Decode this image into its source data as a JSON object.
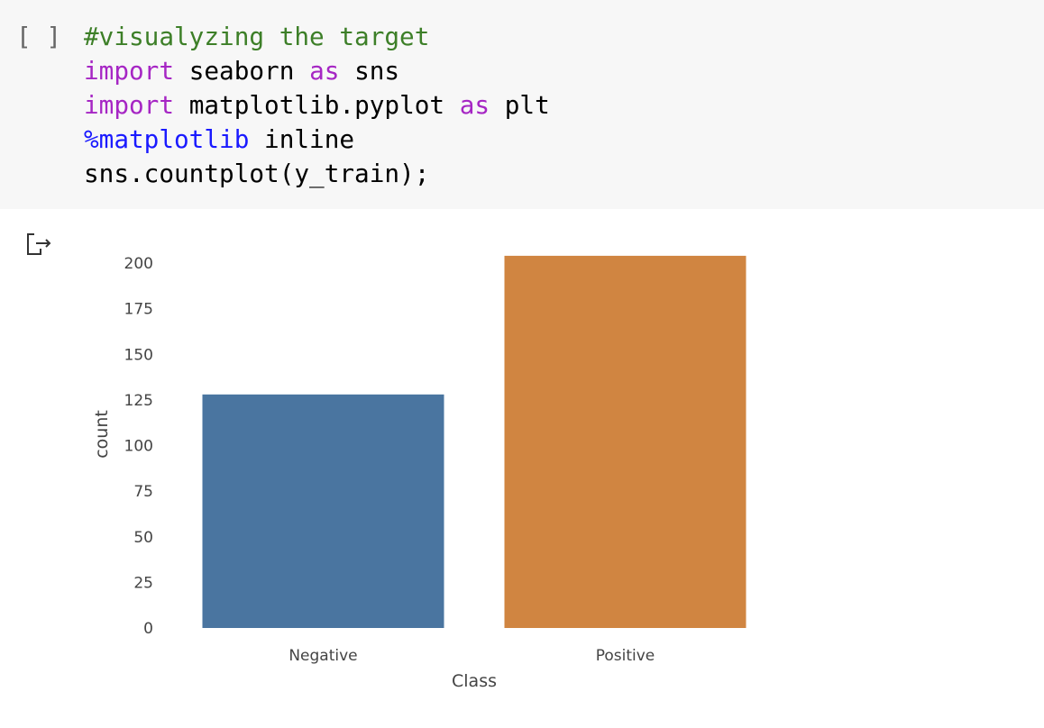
{
  "cell": {
    "prompt": "[ ]",
    "code": [
      [
        "#visualyzing the target"
      ],
      [
        "import",
        " seaborn ",
        "as",
        " sns"
      ],
      [
        "import",
        " matplotlib.pyplot ",
        "as",
        " plt"
      ],
      [
        "%matplotlib",
        " inline"
      ],
      [
        "sns.countplot(y_train);"
      ]
    ]
  },
  "chart_data": {
    "type": "bar",
    "categories": [
      "Negative",
      "Positive"
    ],
    "values": [
      128,
      204
    ],
    "colors": [
      "#4a75a0",
      "#d08541"
    ],
    "x_label": "Class",
    "y_label": "count",
    "ylim": [
      0,
      214
    ],
    "yticks": [
      0,
      25,
      50,
      75,
      100,
      125,
      150,
      175,
      200
    ],
    "grid": false
  }
}
